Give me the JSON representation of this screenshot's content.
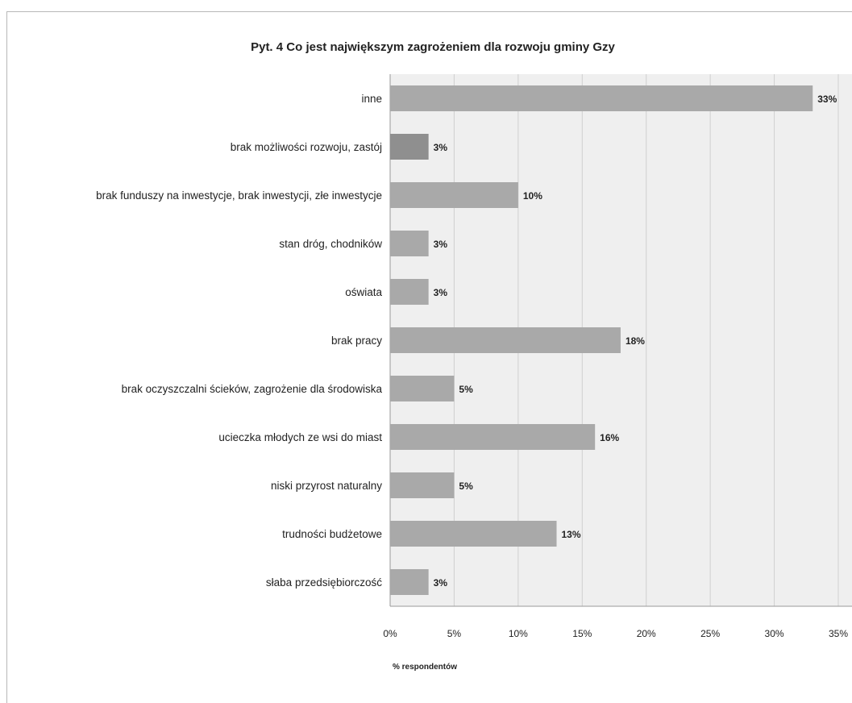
{
  "chart_data": {
    "type": "bar",
    "orientation": "horizontal",
    "title": "Pyt. 4 Co jest największym zagrożeniem dla rozwoju gminy Gzy",
    "xlabel": "% respondentów",
    "ylabel": "",
    "xlim": [
      0,
      35
    ],
    "xticks": [
      "0%",
      "5%",
      "10%",
      "15%",
      "20%",
      "25%",
      "30%",
      "35%"
    ],
    "grid": true,
    "categories": [
      "inne",
      "brak możliwości rozwoju, zastój",
      "brak funduszy na inwestycje, brak inwestycji, złe inwestycje",
      "stan dróg, chodników",
      "oświata",
      "brak pracy",
      "brak oczyszczalni ścieków, zagrożenie dla środowiska",
      "ucieczka młodych ze wsi do miast",
      "niski przyrost naturalny",
      "trudności budżetowe",
      "słaba przedsiębiorczość"
    ],
    "values": [
      33,
      3,
      10,
      3,
      3,
      18,
      5,
      16,
      5,
      13,
      3
    ],
    "value_labels": [
      "33%",
      "3%",
      "10%",
      "3%",
      "3%",
      "18%",
      "5%",
      "16%",
      "5%",
      "13%",
      "3%"
    ],
    "colors": {
      "bar": "#a9a9a9",
      "bar_dark": "#8f8f8f",
      "plot_bg": "#efefef",
      "grid": "#d0d0d0"
    }
  }
}
